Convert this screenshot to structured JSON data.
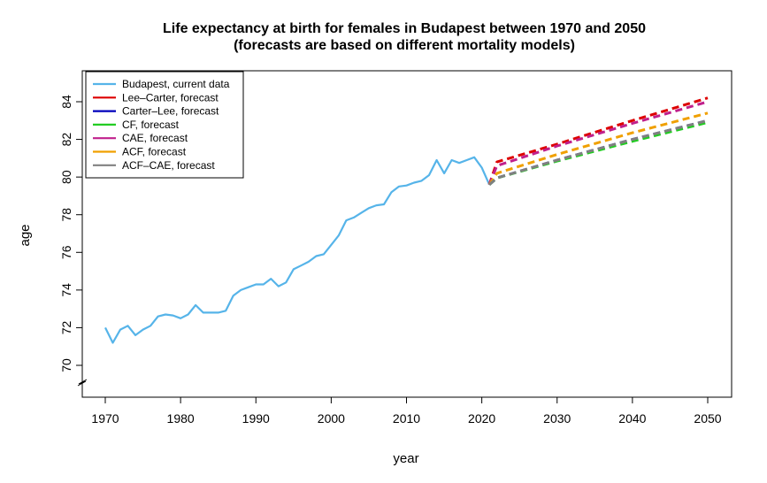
{
  "chart_data": {
    "type": "line",
    "title_line1": "Life expectancy at birth for females in Budapest between 1970 and 2050",
    "title_line2": "(forecasts are based on different mortality models)",
    "xlabel": "year",
    "ylabel": "age",
    "xlim": [
      1970,
      2050
    ],
    "ylim": [
      70,
      84
    ],
    "x_ticks": [
      1970,
      1980,
      1990,
      2000,
      2010,
      2020,
      2030,
      2040,
      2050
    ],
    "y_ticks": [
      70,
      72,
      74,
      76,
      78,
      80,
      82,
      84
    ],
    "axis_break_on_y": true,
    "legend_position": "top-left",
    "series": [
      {
        "name": "Budapest, current data",
        "color": "#56B4E9",
        "style": "solid",
        "x": [
          1970,
          1971,
          1972,
          1973,
          1974,
          1975,
          1976,
          1977,
          1978,
          1979,
          1980,
          1981,
          1982,
          1983,
          1984,
          1985,
          1986,
          1987,
          1988,
          1989,
          1990,
          1991,
          1992,
          1993,
          1994,
          1995,
          1996,
          1997,
          1998,
          1999,
          2000,
          2001,
          2002,
          2003,
          2004,
          2005,
          2006,
          2007,
          2008,
          2009,
          2010,
          2011,
          2012,
          2013,
          2014,
          2015,
          2016,
          2017,
          2018,
          2019,
          2020,
          2021
        ],
        "y": [
          72.0,
          71.2,
          71.9,
          72.1,
          71.6,
          71.9,
          72.1,
          72.6,
          72.7,
          72.65,
          72.5,
          72.7,
          73.2,
          72.8,
          72.8,
          72.8,
          72.9,
          73.7,
          74.0,
          74.15,
          74.3,
          74.3,
          74.6,
          74.2,
          74.4,
          75.1,
          75.3,
          75.5,
          75.8,
          75.9,
          76.4,
          76.9,
          77.7,
          77.85,
          78.1,
          78.35,
          78.5,
          78.55,
          79.2,
          79.5,
          79.55,
          79.7,
          79.8,
          80.1,
          80.9,
          80.2,
          80.9,
          80.75,
          80.9,
          81.05,
          80.5,
          79.6
        ]
      },
      {
        "name": "Lee–Carter, forecast",
        "color": "#DD0000",
        "style": "dashed",
        "x": [
          2021,
          2022,
          2030,
          2040,
          2050
        ],
        "y": [
          79.6,
          80.8,
          81.75,
          83.0,
          84.2
        ]
      },
      {
        "name": "Carter–Lee, forecast",
        "color": "#0000BB",
        "style": "dashed",
        "x": [
          2021,
          2022,
          2030,
          2040,
          2050
        ],
        "y": [
          79.6,
          79.95,
          80.9,
          82.0,
          83.0
        ]
      },
      {
        "name": "CF, forecast",
        "color": "#22CC22",
        "style": "dashed",
        "x": [
          2021,
          2022,
          2030,
          2040,
          2050
        ],
        "y": [
          79.6,
          79.95,
          80.85,
          81.9,
          82.9
        ]
      },
      {
        "name": "CAE, forecast",
        "color": "#C0208C",
        "style": "dashed",
        "x": [
          2021,
          2022,
          2030,
          2040,
          2050
        ],
        "y": [
          79.6,
          80.6,
          81.65,
          82.85,
          84.0
        ]
      },
      {
        "name": "ACF, forecast",
        "color": "#F0A000",
        "style": "dashed",
        "x": [
          2021,
          2022,
          2030,
          2040,
          2050
        ],
        "y": [
          79.6,
          80.2,
          81.2,
          82.35,
          83.4
        ]
      },
      {
        "name": "ACF–CAE, forecast",
        "color": "#808080",
        "style": "dashed",
        "x": [
          2021,
          2022,
          2030,
          2040,
          2050
        ],
        "y": [
          79.6,
          79.95,
          80.9,
          82.0,
          83.0
        ]
      }
    ]
  }
}
